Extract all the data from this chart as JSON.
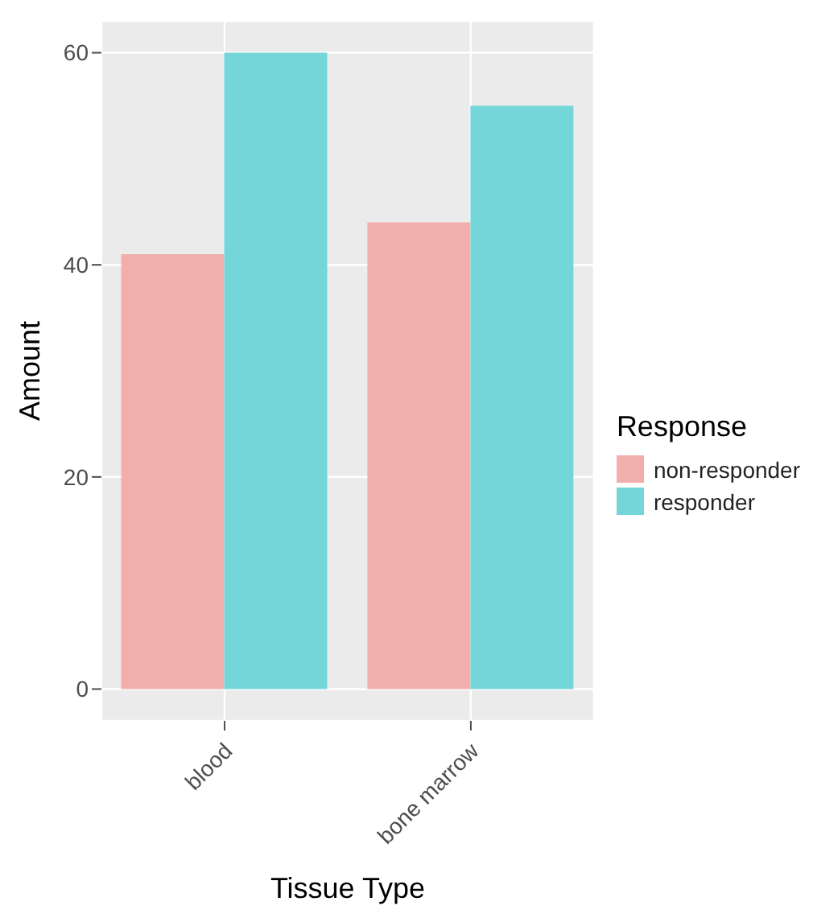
{
  "chart_data": {
    "type": "bar",
    "xlabel": "Tissue Type",
    "ylabel": "Amount",
    "legend_title": "Response",
    "categories": [
      "blood",
      "bone marrow"
    ],
    "series": [
      {
        "name": "non-responder",
        "color": "#f1aeaa",
        "values": [
          41,
          44
        ]
      },
      {
        "name": "responder",
        "color": "#75d6da",
        "values": [
          60,
          55
        ]
      }
    ],
    "ylim": [
      -3,
      63
    ],
    "yticks": [
      0,
      20,
      40,
      60
    ],
    "grid": true,
    "legend": "right"
  }
}
